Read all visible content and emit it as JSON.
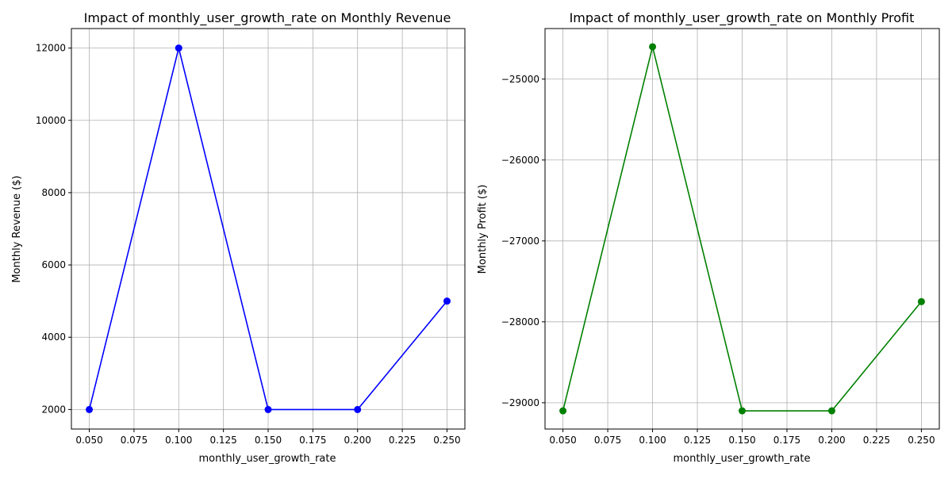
{
  "chart_data": [
    {
      "type": "line",
      "title": "Impact of monthly_user_growth_rate on Monthly Revenue",
      "xlabel": "monthly_user_growth_rate",
      "ylabel": "Monthly Revenue ($)",
      "xlim": [
        0.04,
        0.26
      ],
      "ylim": [
        1460,
        12540
      ],
      "xticks": [
        0.05,
        0.075,
        0.1,
        0.125,
        0.15,
        0.175,
        0.2,
        0.225,
        0.25
      ],
      "xtick_labels": [
        "0.050",
        "0.075",
        "0.100",
        "0.125",
        "0.150",
        "0.175",
        "0.200",
        "0.225",
        "0.250"
      ],
      "yticks": [
        2000,
        4000,
        6000,
        8000,
        10000,
        12000
      ],
      "ytick_labels": [
        "2000",
        "4000",
        "6000",
        "8000",
        "10000",
        "12000"
      ],
      "grid": true,
      "color": "#0000ff",
      "series": [
        {
          "x": [
            0.05,
            0.1,
            0.15,
            0.2,
            0.25
          ],
          "y": [
            2000,
            12000,
            2000,
            2000,
            5000
          ]
        }
      ]
    },
    {
      "type": "line",
      "title": "Impact of monthly_user_growth_rate on Monthly Profit",
      "xlabel": "monthly_user_growth_rate",
      "ylabel": "Monthly Profit ($)",
      "xlim": [
        0.04,
        0.26
      ],
      "ylim": [
        -29325,
        -24375
      ],
      "xticks": [
        0.05,
        0.075,
        0.1,
        0.125,
        0.15,
        0.175,
        0.2,
        0.225,
        0.25
      ],
      "xtick_labels": [
        "0.050",
        "0.075",
        "0.100",
        "0.125",
        "0.150",
        "0.175",
        "0.200",
        "0.225",
        "0.250"
      ],
      "yticks": [
        -29000,
        -28000,
        -27000,
        -26000,
        -25000
      ],
      "ytick_labels": [
        "−29000",
        "−28000",
        "−27000",
        "−26000",
        "−25000"
      ],
      "grid": true,
      "color": "#008000",
      "series": [
        {
          "x": [
            0.05,
            0.1,
            0.15,
            0.2,
            0.25
          ],
          "y": [
            -29100,
            -24600,
            -29100,
            -29100,
            -27750
          ]
        }
      ]
    }
  ]
}
